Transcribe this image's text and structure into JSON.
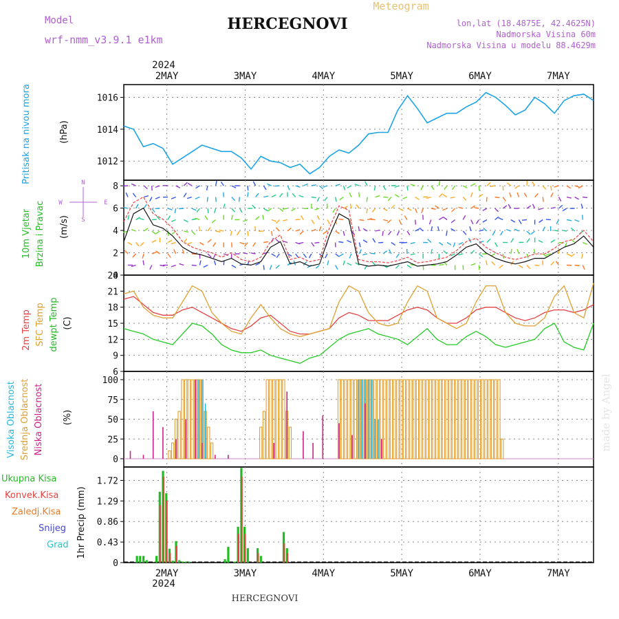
{
  "header": {
    "model_label": "Model",
    "model_name": "wrf-nmm_v3.9.1 e1km",
    "title": "HERCEGNOVI",
    "meteogram_label": "Meteogram",
    "lonlat": "lon,lat (18.4875E, 42.4625N)",
    "altitude": "Nadmorska Visina 60m",
    "model_altitude": "Nadmorska Visina u modelu 88.4629m",
    "footer_title": "HERCEGNOVI",
    "watermark": "made by Angel"
  },
  "time_axis": {
    "year": "2024",
    "days": [
      "2MAY",
      "3MAY",
      "4MAY",
      "5MAY",
      "6MAY",
      "7MAY"
    ]
  },
  "colors": {
    "pressure": "#1aa3e6",
    "temp2m": "#e64040",
    "sfc": "#e0a030",
    "dew": "#22cc22",
    "wind_label": "#22bb22",
    "high_cloud": "#22b8e8",
    "mid_cloud": "#e0a030",
    "low_cloud": "#cc2288",
    "rain_total": "#22bb22",
    "rain_conv": "#e64040",
    "rain_frozen": "#f07a20",
    "snow": "#4444dd",
    "hail": "#22c8c8"
  },
  "panels": {
    "pressure": {
      "label": "Pritisak na nivou mora",
      "unit": "(hPa)"
    },
    "wind": {
      "label1": "10m Vjetar",
      "label2": "Brzina i Pravac",
      "unit": "(m/s)",
      "compass_n": "N",
      "compass_s": "S",
      "compass_e": "E",
      "compass_w": "W"
    },
    "temp": {
      "label1": "2m Temp",
      "label2": "SFC Temp",
      "label3": "dewpt Temp",
      "unit": "(C)"
    },
    "cloud": {
      "label1": "Visoka Oblacnost",
      "label2": "Srednja Oblacnost",
      "label3": "Niska Oblacnost",
      "unit": "(%)"
    },
    "precip": {
      "legend": [
        "Ukupna Kisa",
        "Konvek.Kisa",
        "Zaledj.Kisa",
        "Snijeg",
        "Grad"
      ],
      "axis_label": "1hr Precip (mm)"
    }
  },
  "chart_data": [
    {
      "type": "line",
      "name": "pressure",
      "ylim": [
        1010.8,
        1016.8
      ],
      "yticks": [
        "1012",
        "1014",
        "1016"
      ],
      "x": [
        0,
        1,
        2,
        3,
        4,
        5,
        6,
        7,
        8,
        9,
        10,
        11,
        12,
        13,
        14,
        15,
        16,
        17,
        18,
        19,
        20,
        21,
        22,
        23,
        24,
        25,
        26,
        27,
        28,
        29,
        30,
        31,
        32,
        33,
        34,
        35,
        36,
        37,
        38,
        39,
        40,
        41,
        42,
        43,
        44,
        45,
        46,
        47,
        48
      ],
      "values": [
        1014.2,
        1014.0,
        1012.9,
        1013.1,
        1012.8,
        1011.8,
        1012.2,
        1012.6,
        1013.0,
        1012.8,
        1012.6,
        1012.6,
        1012.2,
        1011.5,
        1012.3,
        1012.0,
        1011.9,
        1011.6,
        1011.8,
        1011.2,
        1011.6,
        1012.3,
        1012.7,
        1012.5,
        1013.0,
        1013.7,
        1013.8,
        1013.8,
        1015.2,
        1016.1,
        1015.3,
        1014.4,
        1014.7,
        1015.0,
        1015.0,
        1015.4,
        1015.7,
        1016.3,
        1016.0,
        1015.5,
        1014.9,
        1015.2,
        1016.0,
        1015.6,
        1015.0,
        1015.8,
        1016.1,
        1016.2,
        1015.8
      ]
    },
    {
      "type": "line",
      "name": "wind",
      "ylim": [
        0,
        8.5
      ],
      "yticks": [
        "0",
        "2",
        "4",
        "6",
        "8"
      ],
      "x": [
        0,
        1,
        2,
        3,
        4,
        5,
        6,
        7,
        8,
        9,
        10,
        11,
        12,
        13,
        14,
        15,
        16,
        17,
        18,
        19,
        20,
        21,
        22,
        23,
        24,
        25,
        26,
        27,
        28,
        29,
        30,
        31,
        32,
        33,
        34,
        35,
        36,
        37,
        38,
        39,
        40,
        41,
        42,
        43,
        44,
        45,
        46,
        47,
        48
      ],
      "values": [
        3.0,
        5.5,
        6.0,
        4.5,
        4.2,
        3.5,
        2.5,
        2.0,
        1.8,
        1.5,
        1.2,
        1.5,
        1.0,
        0.9,
        1.2,
        2.5,
        3.0,
        1.0,
        1.2,
        0.8,
        1.0,
        3.5,
        5.5,
        5.0,
        1.0,
        0.8,
        0.9,
        0.8,
        1.0,
        1.2,
        0.8,
        0.9,
        1.0,
        1.2,
        1.8,
        2.5,
        2.8,
        2.0,
        1.5,
        1.2,
        1.0,
        1.2,
        1.5,
        1.5,
        2.0,
        2.5,
        2.8,
        3.5,
        2.5
      ],
      "gust_values": [
        4.8,
        6.5,
        7.0,
        5.5,
        5.0,
        4.2,
        3.0,
        2.5,
        2.2,
        2.0,
        1.6,
        2.0,
        1.4,
        1.2,
        1.6,
        3.0,
        3.6,
        1.4,
        1.6,
        1.2,
        1.4,
        4.2,
        6.2,
        5.8,
        1.4,
        1.2,
        1.2,
        1.1,
        1.3,
        1.6,
        1.1,
        1.2,
        1.4,
        1.6,
        2.2,
        3.0,
        3.3,
        2.5,
        2.0,
        1.6,
        1.4,
        1.6,
        1.9,
        1.9,
        2.4,
        3.0,
        3.2,
        4.0,
        3.0
      ]
    },
    {
      "type": "line",
      "name": "temperature",
      "ylim": [
        6,
        24
      ],
      "yticks": [
        "6",
        "9",
        "12",
        "15",
        "18",
        "21",
        "24"
      ],
      "series": [
        {
          "name": "2m Temp",
          "color": "#e64040",
          "values": [
            19.5,
            20.0,
            18.5,
            17.0,
            16.5,
            16.5,
            17.5,
            18.0,
            17.0,
            16.0,
            15.0,
            14.0,
            13.5,
            14.5,
            16.0,
            16.5,
            15.0,
            13.5,
            13.0,
            13.0,
            13.5,
            14.0,
            16.0,
            17.0,
            16.5,
            15.5,
            15.5,
            15.5,
            16.5,
            17.5,
            18.0,
            17.5,
            16.0,
            15.0,
            15.0,
            16.0,
            17.5,
            18.0,
            18.0,
            17.0,
            16.0,
            15.5,
            16.0,
            17.0,
            17.5,
            17.5,
            17.0,
            17.5,
            18.5
          ]
        },
        {
          "name": "SFC Temp",
          "color": "#e0a030",
          "values": [
            20.5,
            21.0,
            18.0,
            16.5,
            16.0,
            16.0,
            19.0,
            22.0,
            21.0,
            17.0,
            15.0,
            13.5,
            13.0,
            16.0,
            18.5,
            16.0,
            14.0,
            13.0,
            12.5,
            13.0,
            13.5,
            14.0,
            19.0,
            22.0,
            21.0,
            17.0,
            15.0,
            14.5,
            15.0,
            19.0,
            22.0,
            21.0,
            16.0,
            15.0,
            14.0,
            15.0,
            19.0,
            22.0,
            22.0,
            17.0,
            15.0,
            14.5,
            14.5,
            16.0,
            20.0,
            22.0,
            17.0,
            16.0,
            22.5
          ]
        },
        {
          "name": "dewpt Temp",
          "color": "#22cc22",
          "values": [
            14.0,
            13.5,
            13.0,
            12.0,
            11.5,
            11.0,
            13.0,
            15.0,
            14.5,
            13.0,
            11.0,
            10.0,
            9.5,
            9.5,
            10.0,
            9.0,
            8.5,
            8.0,
            7.5,
            8.5,
            9.0,
            10.5,
            12.0,
            13.0,
            13.5,
            14.0,
            13.0,
            12.5,
            12.0,
            11.0,
            12.5,
            14.0,
            12.0,
            11.0,
            11.0,
            12.5,
            13.5,
            12.5,
            11.0,
            10.5,
            11.0,
            11.5,
            12.0,
            14.0,
            15.0,
            11.5,
            10.5,
            10.0,
            15.0
          ]
        }
      ]
    },
    {
      "type": "bar",
      "name": "cloud_cover",
      "ylim": [
        0,
        100
      ],
      "yticks": [
        "0",
        "25",
        "50",
        "75",
        "100"
      ],
      "series": [
        {
          "name": "Srednja Oblacnost",
          "color": "#e0a030",
          "hours": [
            14,
            15,
            16,
            17,
            18,
            19,
            20,
            21,
            22,
            23,
            24,
            25,
            26,
            27,
            42,
            43,
            44,
            45,
            46,
            47,
            48,
            49,
            50,
            51,
            66,
            67,
            68,
            69,
            70,
            71,
            72,
            73,
            74,
            75,
            76,
            77,
            78,
            79,
            80,
            81,
            82,
            83,
            84,
            85,
            86,
            87,
            88,
            89,
            90,
            91,
            92,
            93,
            94,
            95,
            96,
            97,
            98,
            99,
            100,
            101,
            102,
            103,
            104,
            105,
            106,
            107,
            108,
            109,
            110,
            111,
            112,
            113,
            114,
            115,
            116
          ],
          "values": [
            10,
            20,
            50,
            60,
            100,
            100,
            100,
            100,
            100,
            100,
            100,
            60,
            40,
            20,
            40,
            60,
            100,
            100,
            100,
            100,
            100,
            100,
            60,
            40,
            100,
            100,
            100,
            100,
            100,
            100,
            100,
            100,
            100,
            100,
            100,
            100,
            100,
            100,
            100,
            100,
            100,
            100,
            100,
            100,
            100,
            100,
            100,
            100,
            100,
            100,
            100,
            100,
            100,
            100,
            100,
            100,
            100,
            100,
            100,
            100,
            100,
            100,
            100,
            100,
            100,
            100,
            100,
            100,
            100,
            100,
            100,
            100,
            100,
            100,
            25
          ]
        },
        {
          "name": "Visoka Oblacnost",
          "color": "#22b8e8",
          "hours": [
            22,
            23,
            24,
            25,
            72,
            73,
            74,
            75,
            76,
            77,
            78
          ],
          "values": [
            90,
            100,
            100,
            70,
            100,
            100,
            100,
            100,
            100,
            50,
            50
          ]
        },
        {
          "name": "Niska Oblacnost",
          "color": "#cc2288",
          "hours": [
            2,
            6,
            9,
            12,
            16,
            19,
            22,
            24,
            28,
            32,
            46,
            50,
            55,
            58,
            61,
            66,
            70,
            74,
            79
          ],
          "values": [
            10,
            5,
            60,
            40,
            25,
            50,
            100,
            20,
            5,
            5,
            20,
            85,
            35,
            20,
            55,
            45,
            30,
            70,
            25
          ]
        }
      ]
    },
    {
      "type": "bar",
      "name": "precipitation",
      "ylim": [
        0,
        2.0
      ],
      "yticks": [
        "0",
        "0.43",
        "0.86",
        "1.29",
        "1.72"
      ],
      "series": [
        {
          "name": "Ukupna Kisa",
          "color": "#22bb22",
          "hours": [
            4,
            5,
            6,
            7,
            10,
            11,
            12,
            13,
            14,
            15,
            16,
            17,
            18,
            19,
            20,
            31,
            32,
            34,
            35,
            36,
            37,
            38,
            41,
            42,
            49,
            50
          ],
          "values": [
            0.14,
            0.14,
            0.14,
            0.05,
            0.14,
            1.48,
            1.92,
            1.45,
            0.29,
            0.04,
            0.45,
            0.05,
            0.02,
            0.02,
            0.02,
            0.07,
            0.33,
            0.02,
            0.75,
            1.98,
            0.75,
            0.3,
            0.3,
            0.14,
            0.64,
            0.3
          ]
        },
        {
          "name": "Konvek.Kisa",
          "color": "#e64040",
          "hours": [
            11,
            12,
            13,
            14,
            16,
            35,
            36,
            37,
            41,
            49,
            50
          ],
          "values": [
            1.2,
            1.8,
            1.3,
            0.2,
            0.35,
            0.6,
            1.8,
            0.6,
            0.2,
            0.4,
            0.2
          ]
        }
      ]
    }
  ]
}
